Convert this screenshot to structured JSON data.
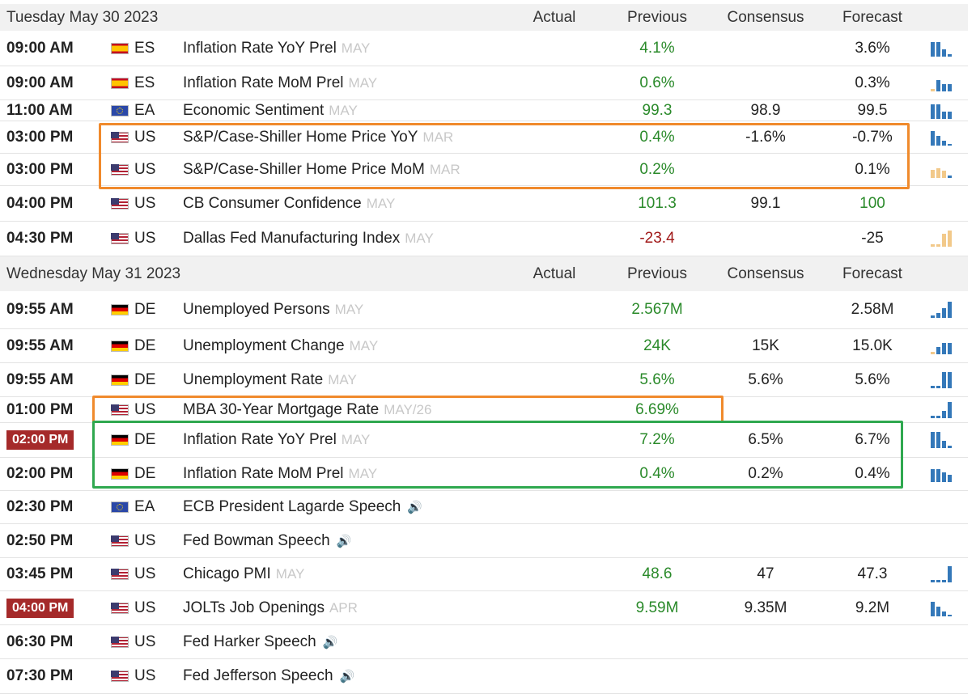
{
  "columns": {
    "actual": "Actual",
    "previous": "Previous",
    "consensus": "Consensus",
    "forecast": "Forecast"
  },
  "days": [
    {
      "date": "Tuesday May 30 2023",
      "rows": [
        {
          "time": "09:00 AM",
          "flag": "es",
          "cc": "ES",
          "event": "Inflation Rate YoY Prel",
          "period": "MAY",
          "actual": "",
          "previous": "4.1%",
          "previous_color": "green",
          "consensus": "",
          "forecast": "3.6%",
          "forecast_color": "",
          "mini": [
            {
              "h": 18,
              "c": "#3478b9"
            },
            {
              "h": 18,
              "c": "#3478b9"
            },
            {
              "h": 9,
              "c": "#3478b9"
            },
            {
              "h": 3,
              "c": "#3478b9"
            }
          ]
        },
        {
          "time": "09:00 AM",
          "flag": "es",
          "cc": "ES",
          "event": "Inflation Rate MoM Prel",
          "period": "MAY",
          "actual": "",
          "previous": "0.6%",
          "previous_color": "green",
          "consensus": "",
          "forecast": "0.3%",
          "forecast_color": "",
          "mini": [
            {
              "h": 3,
              "c": "#f2c98a"
            },
            {
              "h": 14,
              "c": "#3478b9"
            },
            {
              "h": 9,
              "c": "#3478b9"
            },
            {
              "h": 9,
              "c": "#3478b9"
            }
          ]
        },
        {
          "time": "11:00 AM",
          "flag": "eu",
          "cc": "EA",
          "event": "Economic Sentiment",
          "period": "MAY",
          "actual": "",
          "previous": "99.3",
          "previous_color": "green",
          "consensus": "98.9",
          "forecast": "99.5",
          "forecast_color": "",
          "mini": [
            {
              "h": 18,
              "c": "#3478b9"
            },
            {
              "h": 18,
              "c": "#3478b9"
            },
            {
              "h": 9,
              "c": "#3478b9"
            },
            {
              "h": 9,
              "c": "#3478b9"
            }
          ]
        },
        {
          "time": "03:00 PM",
          "flag": "us",
          "cc": "US",
          "event": "S&P/Case-Shiller Home Price YoY",
          "period": "MAR",
          "actual": "",
          "previous": "0.4%",
          "previous_color": "green",
          "consensus": "-1.6%",
          "forecast": "-0.7%",
          "forecast_color": "",
          "mini": [
            {
              "h": 18,
              "c": "#3478b9"
            },
            {
              "h": 12,
              "c": "#3478b9"
            },
            {
              "h": 6,
              "c": "#3478b9"
            },
            {
              "h": 2,
              "c": "#3478b9"
            }
          ]
        },
        {
          "time": "03:00 PM",
          "flag": "us",
          "cc": "US",
          "event": "S&P/Case-Shiller Home Price MoM",
          "period": "MAR",
          "actual": "",
          "previous": "0.2%",
          "previous_color": "green",
          "consensus": "",
          "forecast": "0.1%",
          "forecast_color": "",
          "mini": [
            {
              "h": 10,
              "c": "#f2c98a"
            },
            {
              "h": 12,
              "c": "#f2c98a"
            },
            {
              "h": 9,
              "c": "#f2c98a"
            },
            {
              "h": 3,
              "c": "#3478b9"
            }
          ]
        },
        {
          "time": "04:00 PM",
          "flag": "us",
          "cc": "US",
          "event": "CB Consumer Confidence",
          "period": "MAY",
          "actual": "",
          "previous": "101.3",
          "previous_color": "green",
          "consensus": "99.1",
          "forecast": "100",
          "forecast_color": "green",
          "mini": []
        },
        {
          "time": "04:30 PM",
          "flag": "us",
          "cc": "US",
          "event": "Dallas Fed Manufacturing Index",
          "period": "MAY",
          "actual": "",
          "previous": "-23.4",
          "previous_color": "red",
          "consensus": "",
          "forecast": "-25",
          "forecast_color": "",
          "mini": [
            {
              "h": 3,
              "c": "#f2c98a"
            },
            {
              "h": 3,
              "c": "#f2c98a"
            },
            {
              "h": 16,
              "c": "#f2c98a"
            },
            {
              "h": 20,
              "c": "#f2c98a"
            }
          ]
        }
      ]
    },
    {
      "date": "Wednesday May 31 2023",
      "rows": [
        {
          "time": "09:55 AM",
          "flag": "de",
          "cc": "DE",
          "event": "Unemployed Persons",
          "period": "MAY",
          "actual": "",
          "previous": "2.567M",
          "previous_color": "green",
          "consensus": "",
          "forecast": "2.58M",
          "forecast_color": "",
          "mini": [
            {
              "h": 3,
              "c": "#3478b9"
            },
            {
              "h": 6,
              "c": "#3478b9"
            },
            {
              "h": 12,
              "c": "#3478b9"
            },
            {
              "h": 20,
              "c": "#3478b9"
            }
          ]
        },
        {
          "time": "09:55 AM",
          "flag": "de",
          "cc": "DE",
          "event": "Unemployment Change",
          "period": "MAY",
          "actual": "",
          "previous": "24K",
          "previous_color": "green",
          "consensus": "15K",
          "forecast": "15.0K",
          "forecast_color": "",
          "mini": [
            {
              "h": 3,
              "c": "#f2c98a"
            },
            {
              "h": 9,
              "c": "#3478b9"
            },
            {
              "h": 14,
              "c": "#3478b9"
            },
            {
              "h": 14,
              "c": "#3478b9"
            }
          ]
        },
        {
          "time": "09:55 AM",
          "flag": "de",
          "cc": "DE",
          "event": "Unemployment Rate",
          "period": "MAY",
          "actual": "",
          "previous": "5.6%",
          "previous_color": "green",
          "consensus": "5.6%",
          "forecast": "5.6%",
          "forecast_color": "",
          "mini": [
            {
              "h": 3,
              "c": "#3478b9"
            },
            {
              "h": 3,
              "c": "#3478b9"
            },
            {
              "h": 20,
              "c": "#3478b9"
            },
            {
              "h": 20,
              "c": "#3478b9"
            }
          ]
        },
        {
          "time": "01:00 PM",
          "flag": "us",
          "cc": "US",
          "event": "MBA 30-Year Mortgage Rate",
          "period": "MAY/26",
          "actual": "",
          "previous": "6.69%",
          "previous_color": "green",
          "consensus": "",
          "forecast": "",
          "forecast_color": "",
          "mini": [
            {
              "h": 3,
              "c": "#3478b9"
            },
            {
              "h": 3,
              "c": "#3478b9"
            },
            {
              "h": 9,
              "c": "#3478b9"
            },
            {
              "h": 20,
              "c": "#3478b9"
            }
          ]
        },
        {
          "time": "02:00 PM",
          "badge": true,
          "flag": "de",
          "cc": "DE",
          "event": "Inflation Rate YoY Prel",
          "period": "MAY",
          "actual": "",
          "previous": "7.2%",
          "previous_color": "green",
          "consensus": "6.5%",
          "forecast": "6.7%",
          "forecast_color": "",
          "mini": [
            {
              "h": 20,
              "c": "#3478b9"
            },
            {
              "h": 20,
              "c": "#3478b9"
            },
            {
              "h": 9,
              "c": "#3478b9"
            },
            {
              "h": 3,
              "c": "#3478b9"
            }
          ]
        },
        {
          "time": "02:00 PM",
          "flag": "de",
          "cc": "DE",
          "event": "Inflation Rate MoM Prel",
          "period": "MAY",
          "actual": "",
          "previous": "0.4%",
          "previous_color": "green",
          "consensus": "0.2%",
          "forecast": "0.4%",
          "forecast_color": "",
          "mini": [
            {
              "h": 16,
              "c": "#3478b9"
            },
            {
              "h": 16,
              "c": "#3478b9"
            },
            {
              "h": 12,
              "c": "#3478b9"
            },
            {
              "h": 9,
              "c": "#3478b9"
            }
          ]
        },
        {
          "time": "02:30 PM",
          "flag": "eu",
          "cc": "EA",
          "event": "ECB President Lagarde Speech",
          "period": "",
          "speech": true,
          "actual": "",
          "previous": "",
          "previous_color": "",
          "consensus": "",
          "forecast": "",
          "forecast_color": "",
          "mini": []
        },
        {
          "time": "02:50 PM",
          "flag": "us",
          "cc": "US",
          "event": "Fed Bowman Speech",
          "period": "",
          "speech": true,
          "actual": "",
          "previous": "",
          "previous_color": "",
          "consensus": "",
          "forecast": "",
          "forecast_color": "",
          "mini": []
        },
        {
          "time": "03:45 PM",
          "flag": "us",
          "cc": "US",
          "event": "Chicago PMI",
          "period": "MAY",
          "actual": "",
          "previous": "48.6",
          "previous_color": "green",
          "consensus": "47",
          "forecast": "47.3",
          "forecast_color": "",
          "mini": [
            {
              "h": 3,
              "c": "#3478b9"
            },
            {
              "h": 3,
              "c": "#3478b9"
            },
            {
              "h": 3,
              "c": "#3478b9"
            },
            {
              "h": 20,
              "c": "#3478b9"
            }
          ]
        },
        {
          "time": "04:00 PM",
          "badge": true,
          "flag": "us",
          "cc": "US",
          "event": "JOLTs Job Openings",
          "period": "APR",
          "actual": "",
          "previous": "9.59M",
          "previous_color": "green",
          "consensus": "9.35M",
          "forecast": "9.2M",
          "forecast_color": "",
          "mini": [
            {
              "h": 18,
              "c": "#3478b9"
            },
            {
              "h": 12,
              "c": "#3478b9"
            },
            {
              "h": 6,
              "c": "#3478b9"
            },
            {
              "h": 2,
              "c": "#3478b9"
            }
          ]
        },
        {
          "time": "06:30 PM",
          "flag": "us",
          "cc": "US",
          "event": "Fed Harker Speech",
          "period": "",
          "speech": true,
          "actual": "",
          "previous": "",
          "previous_color": "",
          "consensus": "",
          "forecast": "",
          "forecast_color": "",
          "mini": []
        },
        {
          "time": "07:30 PM",
          "flag": "us",
          "cc": "US",
          "event": "Fed Jefferson Speech",
          "period": "",
          "speech": true,
          "actual": "",
          "previous": "",
          "previous_color": "",
          "consensus": "",
          "forecast": "",
          "forecast_color": "",
          "mini": []
        }
      ]
    }
  ]
}
